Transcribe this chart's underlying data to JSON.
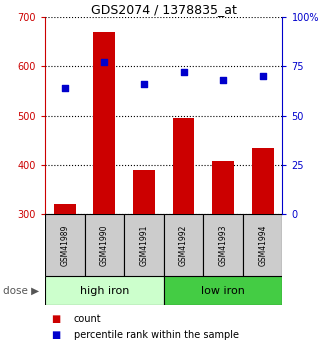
{
  "title": "GDS2074 / 1378835_at",
  "samples": [
    "GSM41989",
    "GSM41990",
    "GSM41991",
    "GSM41992",
    "GSM41993",
    "GSM41994"
  ],
  "counts": [
    320,
    670,
    390,
    495,
    408,
    435
  ],
  "percentiles": [
    64,
    77,
    66,
    72,
    68,
    70
  ],
  "ylim_left": [
    300,
    700
  ],
  "ylim_right": [
    0,
    100
  ],
  "yticks_left": [
    300,
    400,
    500,
    600,
    700
  ],
  "yticks_right": [
    0,
    25,
    50,
    75,
    100
  ],
  "bar_color": "#cc0000",
  "dot_color": "#0000cc",
  "group1_label": "high iron",
  "group2_label": "low iron",
  "group1_color": "#ccffcc",
  "group2_color": "#44cc44",
  "group1_indices": [
    0,
    1,
    2
  ],
  "group2_indices": [
    3,
    4,
    5
  ],
  "dose_label": "dose",
  "legend_count": "count",
  "legend_pct": "percentile rank within the sample",
  "left_axis_color": "#cc0000",
  "right_axis_color": "#0000cc",
  "sample_box_color": "#cccccc"
}
